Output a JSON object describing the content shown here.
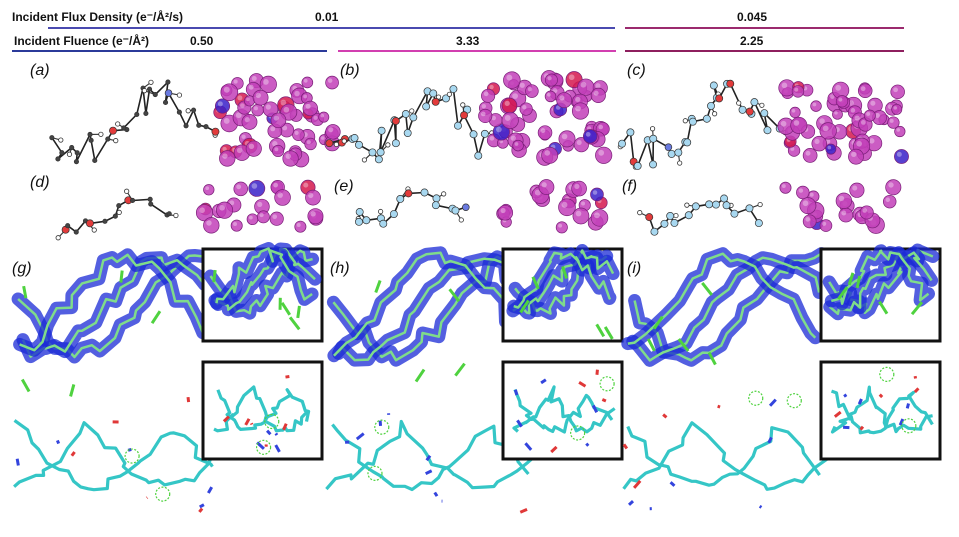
{
  "header": {
    "flux_label": "Incident Flux Density (e⁻/Å²/s)",
    "fluence_label": "Incident Fluence (e⁻/Å²)",
    "flux_values": [
      "0.01",
      "0.045"
    ],
    "fluence_values": [
      "0.50",
      "3.33",
      "2.25"
    ],
    "colors": {
      "flux_a": "#4a4ab0",
      "flux_b": "#9b2a6e",
      "fluence_a": "#2b3a9a",
      "fluence_b": "#d23fb0",
      "fluence_c": "#8e1f5e"
    }
  },
  "panels": {
    "labels": [
      "(a)",
      "(b)",
      "(c)",
      "(d)",
      "(e)",
      "(f)",
      "(g)",
      "(h)",
      "(i)"
    ]
  },
  "palette": {
    "density_magenta": "#c23fb8",
    "density_red": "#d5174d",
    "density_blue": "#3a20c8",
    "bond_light_blue": "#a8d8f0",
    "mesh_blue": "#1a2ad6",
    "stick_cyan": "#35c6c6",
    "stick_green": "#4fd23f",
    "inset_border": "#111111"
  }
}
